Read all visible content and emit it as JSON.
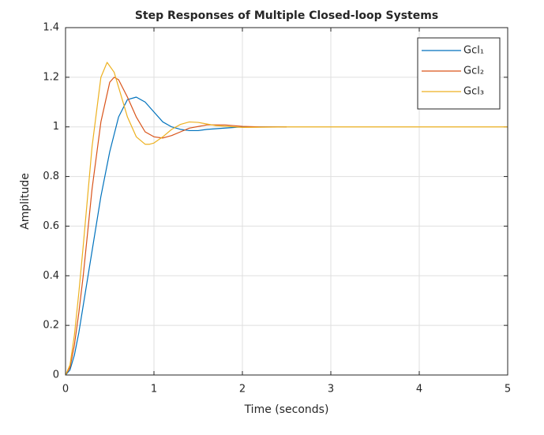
{
  "chart_data": {
    "type": "line",
    "title": "Step Responses of Multiple Closed-loop Systems",
    "x_label": "Time (seconds)",
    "y_label": "Amplitude",
    "xlim": [
      0,
      5
    ],
    "ylim": [
      0,
      1.4
    ],
    "xticks": [
      0,
      1,
      2,
      3,
      4,
      5
    ],
    "yticks": [
      0,
      0.2,
      0.4,
      0.6,
      0.8,
      1,
      1.2,
      1.4
    ],
    "grid": true,
    "legend": "upper right",
    "series": [
      {
        "name": "Gcl₁",
        "color": "#0072bd",
        "x": [
          0,
          0.05,
          0.1,
          0.15,
          0.2,
          0.3,
          0.4,
          0.5,
          0.6,
          0.7,
          0.8,
          0.9,
          1.0,
          1.1,
          1.2,
          1.3,
          1.4,
          1.5,
          1.6,
          1.8,
          2.0,
          2.2,
          2.5
        ],
        "values": [
          0,
          0.02,
          0.08,
          0.17,
          0.28,
          0.5,
          0.72,
          0.9,
          1.04,
          1.11,
          1.12,
          1.1,
          1.06,
          1.02,
          1.0,
          0.99,
          0.985,
          0.985,
          0.99,
          0.995,
          1.0,
          1.0,
          1.0
        ]
      },
      {
        "name": "Gcl₂",
        "color": "#d95319",
        "x": [
          0,
          0.05,
          0.1,
          0.15,
          0.2,
          0.3,
          0.4,
          0.5,
          0.55,
          0.6,
          0.7,
          0.8,
          0.9,
          1.0,
          1.1,
          1.2,
          1.3,
          1.4,
          1.6,
          1.8,
          2.0,
          2.2,
          2.5
        ],
        "values": [
          0,
          0.03,
          0.12,
          0.25,
          0.4,
          0.75,
          1.02,
          1.18,
          1.2,
          1.19,
          1.12,
          1.04,
          0.98,
          0.96,
          0.955,
          0.965,
          0.98,
          0.995,
          1.008,
          1.008,
          1.002,
          1.0,
          1.0
        ]
      },
      {
        "name": "Gcl₃",
        "color": "#edb120",
        "x": [
          0,
          0.05,
          0.1,
          0.15,
          0.2,
          0.3,
          0.4,
          0.47,
          0.55,
          0.6,
          0.7,
          0.8,
          0.9,
          0.95,
          1.0,
          1.1,
          1.2,
          1.3,
          1.4,
          1.5,
          1.7,
          2.0,
          2.5,
          3,
          5
        ],
        "values": [
          0,
          0.04,
          0.16,
          0.33,
          0.52,
          0.92,
          1.2,
          1.26,
          1.22,
          1.16,
          1.04,
          0.96,
          0.93,
          0.93,
          0.935,
          0.96,
          0.99,
          1.01,
          1.02,
          1.018,
          1.005,
          0.998,
          1.0,
          1,
          1
        ]
      }
    ]
  }
}
